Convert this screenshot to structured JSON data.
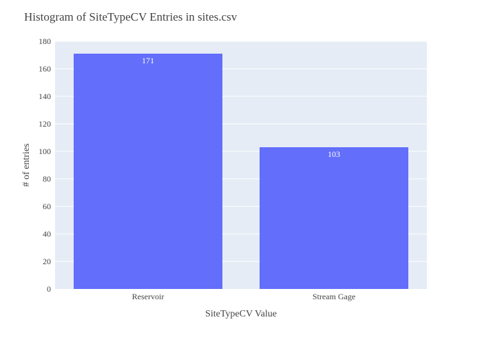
{
  "chart_data": {
    "type": "bar",
    "title": "Histogram of SiteTypeCV Entries in sites.csv",
    "xlabel": "SiteTypeCV Value",
    "ylabel": "# of entries",
    "categories": [
      "Reservoir",
      "Stream Gage"
    ],
    "values": [
      171,
      103
    ],
    "ylim": [
      0,
      180
    ],
    "yticks": [
      0,
      20,
      40,
      60,
      80,
      100,
      120,
      140,
      160,
      180
    ],
    "grid": true,
    "bar_color": "#636efa",
    "plot_bg": "#e5ecf6",
    "grid_color": "#ffffff",
    "data_labels": [
      "171",
      "103"
    ]
  }
}
